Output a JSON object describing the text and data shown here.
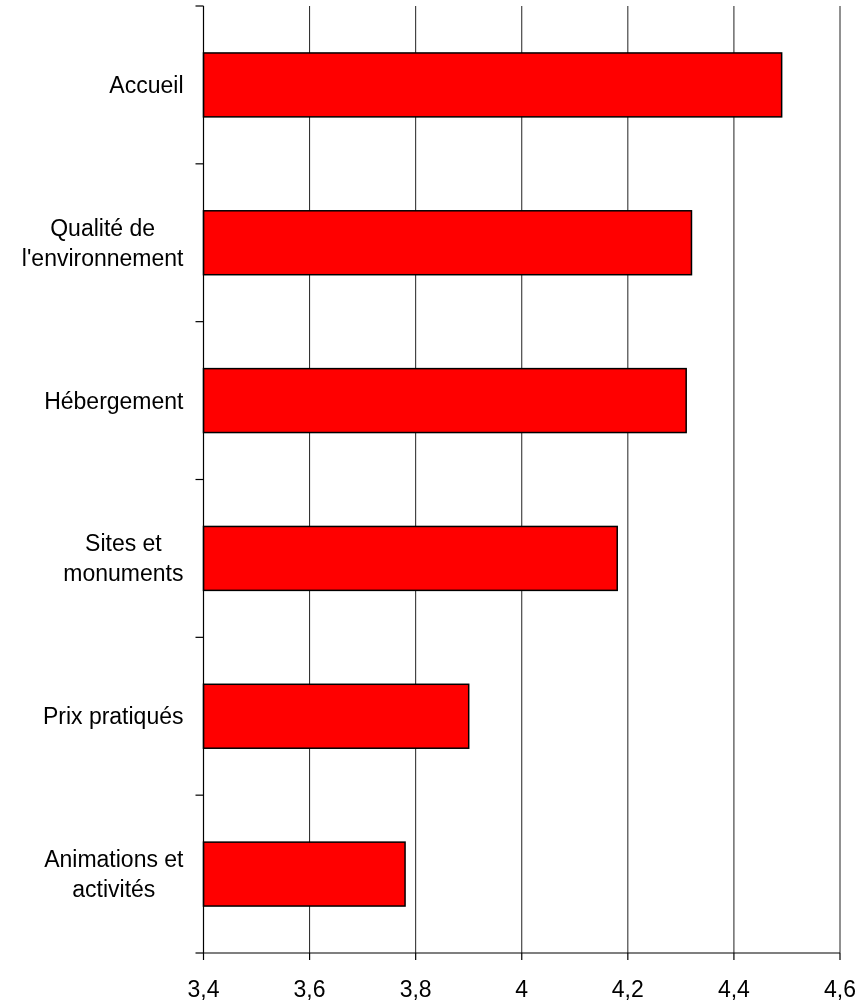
{
  "chart_data": {
    "type": "bar",
    "orientation": "horizontal",
    "categories": [
      "Accueil",
      "Qualité de l'environnement",
      "Hébergement",
      "Sites et monuments",
      "Prix pratiqués",
      "Animations et activités"
    ],
    "values": [
      4.49,
      4.32,
      4.31,
      4.18,
      3.9,
      3.78
    ],
    "color": "#ff0000",
    "xlim": [
      3.4,
      4.6
    ],
    "xticks": [
      {
        "value": 3.4,
        "label": "3,4"
      },
      {
        "value": 3.6,
        "label": "3,6"
      },
      {
        "value": 3.8,
        "label": "3,8"
      },
      4,
      {
        "value": 4.2,
        "label": "4,2"
      },
      {
        "value": 4.4,
        "label": "4,4"
      },
      {
        "value": 4.6,
        "label": "4,6"
      }
    ],
    "grid": "x"
  }
}
